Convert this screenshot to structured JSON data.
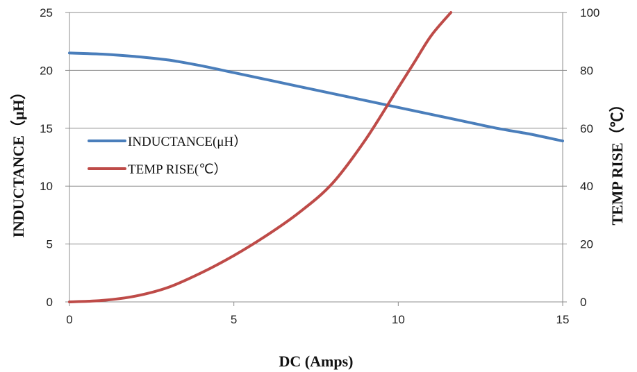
{
  "chart_data": {
    "type": "line",
    "xlabel": "DC (Amps)",
    "ylabel_left": "INDUCTANCE（μH）",
    "ylabel_right": "TEMP RISE（℃）",
    "xlim": [
      0,
      15
    ],
    "ylim_left": [
      0,
      25
    ],
    "ylim_right": [
      0,
      100
    ],
    "x_ticks": [
      "0",
      "5",
      "10",
      "15"
    ],
    "y_ticks_left": [
      "0",
      "5",
      "10",
      "15",
      "20",
      "25"
    ],
    "y_ticks_right": [
      "0",
      "20",
      "40",
      "60",
      "80",
      "100"
    ],
    "grid": true,
    "legend_position": "left",
    "series": [
      {
        "name": "INDUCTANCE(μH）",
        "axis": "left",
        "color": "#4A7EBB",
        "x": [
          0,
          1,
          2,
          3,
          4,
          5,
          6,
          7,
          8,
          9,
          10,
          11,
          12,
          13,
          14,
          15
        ],
        "y": [
          21.5,
          21.4,
          21.2,
          20.9,
          20.4,
          19.8,
          19.2,
          18.6,
          18.0,
          17.4,
          16.8,
          16.2,
          15.6,
          15.0,
          14.5,
          13.9
        ]
      },
      {
        "name": "TEMP RISE(℃）",
        "axis": "right",
        "color": "#BE4B48",
        "x": [
          0,
          1,
          2,
          3,
          4,
          5,
          6,
          7,
          8,
          9,
          10,
          10.5,
          11,
          11.6
        ],
        "y": [
          0,
          0.5,
          2,
          5,
          10,
          16,
          23,
          31,
          41,
          56,
          74,
          83,
          92,
          100
        ]
      }
    ]
  }
}
